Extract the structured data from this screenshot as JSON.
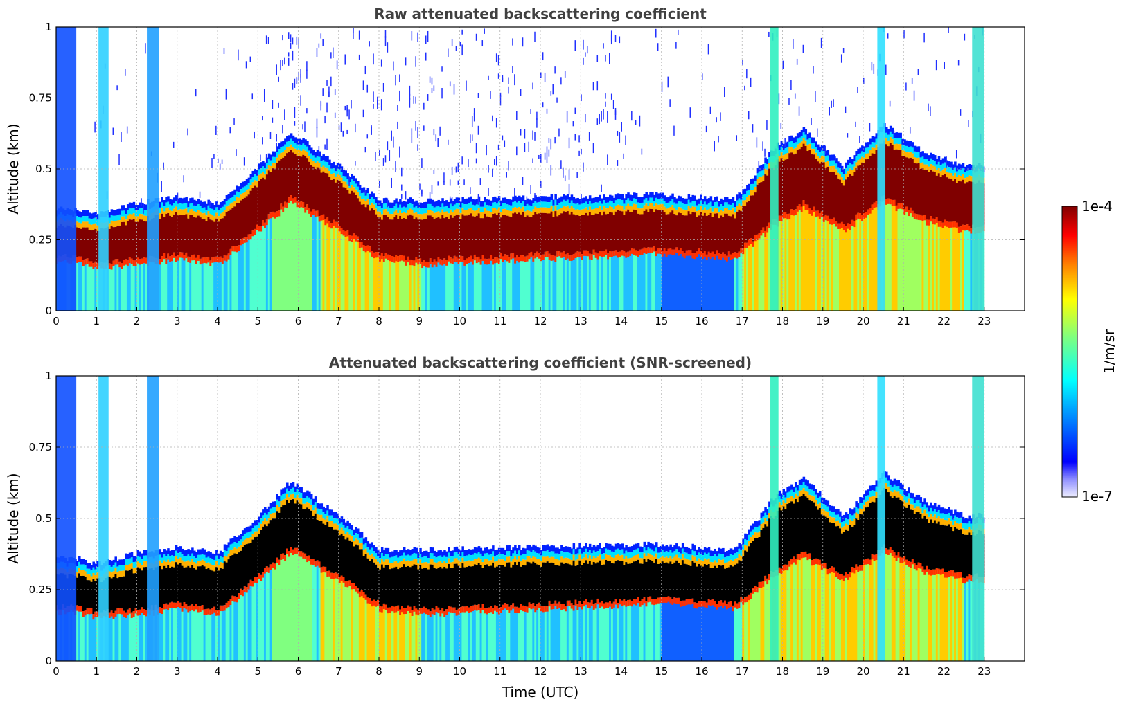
{
  "chart_data": [
    {
      "type": "heatmap",
      "title": "Raw attenuated backscattering coefficient",
      "xlabel": "",
      "ylabel": "Altitude (km)",
      "xlim": [
        0,
        24
      ],
      "ylim": [
        0,
        1
      ],
      "xticks": [
        "0",
        "1",
        "2",
        "3",
        "4",
        "5",
        "6",
        "7",
        "8",
        "9",
        "10",
        "11",
        "12",
        "13",
        "14",
        "15",
        "16",
        "17",
        "18",
        "19",
        "20",
        "21",
        "22",
        "23"
      ],
      "yticks": [
        "0",
        "0.25",
        "0.5",
        "0.75",
        "1"
      ],
      "grid": true,
      "data_end_hour": 23,
      "layer": {
        "description_hours": [
          0.5,
          1,
          2,
          3,
          4,
          5,
          5.8,
          7,
          8,
          9,
          12,
          15,
          16.8,
          17.8,
          18.5,
          19.5,
          20.5,
          21.5,
          22.5
        ],
        "core_low_km": [
          0.19,
          0.17,
          0.18,
          0.2,
          0.18,
          0.3,
          0.4,
          0.3,
          0.2,
          0.18,
          0.2,
          0.22,
          0.2,
          0.32,
          0.38,
          0.3,
          0.4,
          0.33,
          0.3
        ],
        "core_high_km": [
          0.3,
          0.28,
          0.32,
          0.34,
          0.32,
          0.45,
          0.57,
          0.45,
          0.33,
          0.33,
          0.34,
          0.35,
          0.33,
          0.52,
          0.58,
          0.45,
          0.6,
          0.5,
          0.45
        ]
      }
    },
    {
      "type": "heatmap",
      "title": "Attenuated backscattering coefficient (SNR-screened)",
      "xlabel": "Time (UTC)",
      "ylabel": "Altitude (km)",
      "xlim": [
        0,
        24
      ],
      "ylim": [
        0,
        1
      ],
      "xticks": [
        "0",
        "1",
        "2",
        "3",
        "4",
        "5",
        "6",
        "7",
        "8",
        "9",
        "10",
        "11",
        "12",
        "13",
        "14",
        "15",
        "16",
        "17",
        "18",
        "19",
        "20",
        "21",
        "22",
        "23"
      ],
      "yticks": [
        "0",
        "0.25",
        "0.5",
        "0.75",
        "1"
      ],
      "grid": true,
      "data_end_hour": 23,
      "saturated_color": "#000000"
    }
  ],
  "colorbar": {
    "label": "1/m/sr",
    "max_label": "1e-4",
    "min_label": "1e-7",
    "colors": [
      "#e8e8ff",
      "#0000ff",
      "#00a0ff",
      "#00ffff",
      "#7fff7f",
      "#ffff00",
      "#ff8000",
      "#ff0000",
      "#800000"
    ]
  }
}
